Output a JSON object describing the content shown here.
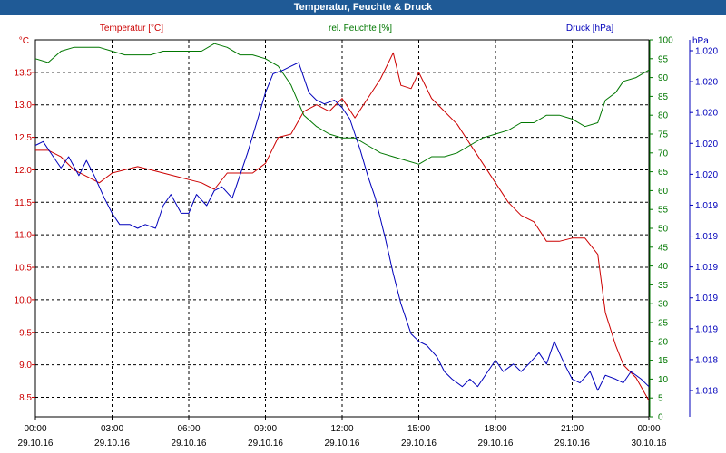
{
  "window": {
    "title": "Temperatur, Feuchte & Druck"
  },
  "colors": {
    "temperature": "#cc0000",
    "humidity": "#007700",
    "pressure": "#0000bb",
    "grid": "#000000",
    "titlebar": "#1f5a96"
  },
  "chart_data": {
    "type": "line",
    "title": "Temperatur, Feuchte & Druck",
    "grid": true,
    "x_axis": {
      "ticks": [
        {
          "time": "00:00",
          "date": "29.10.16"
        },
        {
          "time": "03:00",
          "date": "29.10.16"
        },
        {
          "time": "06:00",
          "date": "29.10.16"
        },
        {
          "time": "09:00",
          "date": "29.10.16"
        },
        {
          "time": "12:00",
          "date": "29.10.16"
        },
        {
          "time": "15:00",
          "date": "29.10.16"
        },
        {
          "time": "18:00",
          "date": "29.10.16"
        },
        {
          "time": "21:00",
          "date": "29.10.16"
        },
        {
          "time": "00:00",
          "date": "30.10.16"
        }
      ],
      "range_hours": [
        0,
        24
      ]
    },
    "axes": {
      "temperature": {
        "label": "Temperatur [°C]",
        "unit": "°C",
        "range": [
          8.2,
          14.0
        ],
        "tick_labels": [
          "8.5",
          "9.0",
          "9.5",
          "10.0",
          "10.5",
          "11.0",
          "11.5",
          "12.0",
          "12.5",
          "13.0",
          "13.5"
        ]
      },
      "humidity": {
        "label": "rel. Feuchte [%]",
        "unit": "%",
        "range": [
          0,
          100
        ],
        "tick_labels": [
          "0",
          "5",
          "10",
          "15",
          "20",
          "25",
          "30",
          "35",
          "40",
          "45",
          "50",
          "55",
          "60",
          "65",
          "70",
          "75",
          "80",
          "85",
          "90",
          "95",
          "100"
        ]
      },
      "pressure": {
        "label": "Druck [hPa]",
        "unit": "hPa",
        "range": [
          0,
          100
        ],
        "tick_labels": [
          "1.018",
          "1.018",
          "1.019",
          "1.019",
          "1.019",
          "1.019",
          "1.019",
          "1.020",
          "1.020",
          "1.020",
          "1.020",
          "1.020"
        ]
      }
    },
    "series": [
      {
        "name": "Temperatur [°C]",
        "axis": "temperature",
        "points": [
          [
            0,
            12.3
          ],
          [
            0.5,
            12.3
          ],
          [
            1,
            12.2
          ],
          [
            1.5,
            12.0
          ],
          [
            2,
            11.9
          ],
          [
            2.5,
            11.8
          ],
          [
            3,
            11.95
          ],
          [
            3.5,
            12.0
          ],
          [
            4,
            12.05
          ],
          [
            4.5,
            12.0
          ],
          [
            5,
            11.95
          ],
          [
            5.5,
            11.9
          ],
          [
            6,
            11.85
          ],
          [
            6.5,
            11.8
          ],
          [
            7,
            11.7
          ],
          [
            7.5,
            11.95
          ],
          [
            8,
            11.95
          ],
          [
            8.5,
            11.95
          ],
          [
            9,
            12.1
          ],
          [
            9.5,
            12.5
          ],
          [
            10,
            12.55
          ],
          [
            10.5,
            12.9
          ],
          [
            11,
            13.0
          ],
          [
            11.5,
            12.9
          ],
          [
            12,
            13.1
          ],
          [
            12.5,
            12.8
          ],
          [
            13,
            13.1
          ],
          [
            13.5,
            13.4
          ],
          [
            14,
            13.8
          ],
          [
            14.3,
            13.3
          ],
          [
            14.7,
            13.25
          ],
          [
            15,
            13.5
          ],
          [
            15.5,
            13.1
          ],
          [
            16,
            12.9
          ],
          [
            16.5,
            12.7
          ],
          [
            17,
            12.4
          ],
          [
            17.5,
            12.1
          ],
          [
            18,
            11.8
          ],
          [
            18.5,
            11.5
          ],
          [
            19,
            11.3
          ],
          [
            19.5,
            11.2
          ],
          [
            20,
            10.9
          ],
          [
            20.5,
            10.9
          ],
          [
            21,
            10.95
          ],
          [
            21.5,
            10.95
          ],
          [
            22,
            10.7
          ],
          [
            22.3,
            9.8
          ],
          [
            22.7,
            9.3
          ],
          [
            23,
            9.0
          ],
          [
            23.5,
            8.8
          ],
          [
            24,
            8.45
          ]
        ]
      },
      {
        "name": "rel. Feuchte [%]",
        "axis": "humidity",
        "points": [
          [
            0,
            95
          ],
          [
            0.5,
            94
          ],
          [
            1,
            97
          ],
          [
            1.5,
            98
          ],
          [
            2,
            98
          ],
          [
            2.5,
            98
          ],
          [
            3,
            97
          ],
          [
            3.5,
            96
          ],
          [
            4,
            96
          ],
          [
            4.5,
            96
          ],
          [
            5,
            97
          ],
          [
            5.5,
            97
          ],
          [
            6,
            97
          ],
          [
            6.5,
            97
          ],
          [
            7,
            99
          ],
          [
            7.5,
            98
          ],
          [
            8,
            96
          ],
          [
            8.5,
            96
          ],
          [
            9,
            95
          ],
          [
            9.5,
            93
          ],
          [
            10,
            88
          ],
          [
            10.5,
            80
          ],
          [
            11,
            77
          ],
          [
            11.5,
            75
          ],
          [
            12,
            74
          ],
          [
            12.5,
            74
          ],
          [
            13,
            72
          ],
          [
            13.5,
            70
          ],
          [
            14,
            69
          ],
          [
            14.5,
            68
          ],
          [
            15,
            67
          ],
          [
            15.5,
            69
          ],
          [
            16,
            69
          ],
          [
            16.5,
            70
          ],
          [
            17,
            72
          ],
          [
            17.5,
            74
          ],
          [
            18,
            75
          ],
          [
            18.5,
            76
          ],
          [
            19,
            78
          ],
          [
            19.5,
            78
          ],
          [
            20,
            80
          ],
          [
            20.5,
            80
          ],
          [
            21,
            79
          ],
          [
            21.5,
            77
          ],
          [
            22,
            78
          ],
          [
            22.3,
            84
          ],
          [
            22.7,
            86
          ],
          [
            23,
            89
          ],
          [
            23.5,
            90
          ],
          [
            24,
            92
          ]
        ]
      },
      {
        "name": "Druck [hPa]",
        "axis": "pressure",
        "points": [
          [
            0,
            72
          ],
          [
            0.3,
            73
          ],
          [
            0.7,
            69
          ],
          [
            1,
            66
          ],
          [
            1.3,
            69
          ],
          [
            1.7,
            64
          ],
          [
            2,
            68
          ],
          [
            2.3,
            64
          ],
          [
            2.7,
            58
          ],
          [
            3,
            54
          ],
          [
            3.3,
            51
          ],
          [
            3.7,
            51
          ],
          [
            4,
            50
          ],
          [
            4.3,
            51
          ],
          [
            4.7,
            50
          ],
          [
            5,
            56
          ],
          [
            5.3,
            59
          ],
          [
            5.7,
            54
          ],
          [
            6,
            54
          ],
          [
            6.3,
            59
          ],
          [
            6.7,
            56
          ],
          [
            7,
            60
          ],
          [
            7.3,
            61
          ],
          [
            7.7,
            58
          ],
          [
            8,
            64
          ],
          [
            8.3,
            70
          ],
          [
            8.7,
            79
          ],
          [
            9,
            86
          ],
          [
            9.3,
            91
          ],
          [
            9.7,
            92
          ],
          [
            10,
            93
          ],
          [
            10.3,
            94
          ],
          [
            10.7,
            86
          ],
          [
            11,
            84
          ],
          [
            11.3,
            83
          ],
          [
            11.7,
            84
          ],
          [
            12,
            82
          ],
          [
            12.3,
            79
          ],
          [
            12.7,
            71
          ],
          [
            13,
            64
          ],
          [
            13.3,
            58
          ],
          [
            13.7,
            47
          ],
          [
            14,
            38
          ],
          [
            14.3,
            30
          ],
          [
            14.7,
            22
          ],
          [
            15,
            20
          ],
          [
            15.3,
            19
          ],
          [
            15.7,
            16
          ],
          [
            16,
            12
          ],
          [
            16.3,
            10
          ],
          [
            16.7,
            8
          ],
          [
            17,
            10
          ],
          [
            17.3,
            8
          ],
          [
            17.7,
            12
          ],
          [
            18,
            15
          ],
          [
            18.3,
            12
          ],
          [
            18.7,
            14
          ],
          [
            19,
            12
          ],
          [
            19.3,
            14
          ],
          [
            19.7,
            17
          ],
          [
            20,
            14
          ],
          [
            20.3,
            20
          ],
          [
            20.7,
            14
          ],
          [
            21,
            10
          ],
          [
            21.3,
            9
          ],
          [
            21.7,
            12
          ],
          [
            22,
            7
          ],
          [
            22.3,
            11
          ],
          [
            22.7,
            10
          ],
          [
            23,
            9
          ],
          [
            23.3,
            12
          ],
          [
            23.7,
            10
          ],
          [
            24,
            8
          ]
        ]
      }
    ]
  }
}
